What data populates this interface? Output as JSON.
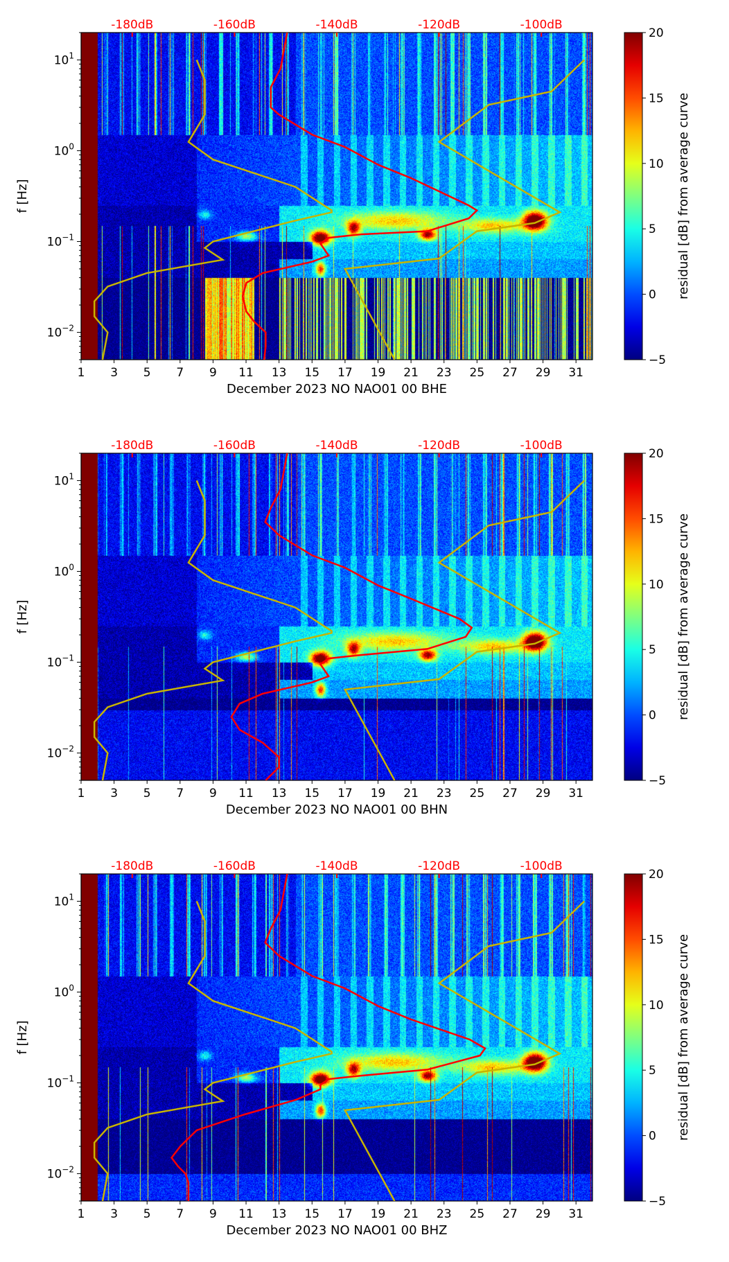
{
  "chart_data": {
    "type": "heatmap",
    "x_axis": {
      "label_field": "xlabel",
      "range_days": [
        1,
        32
      ],
      "ticks": [
        "1",
        "3",
        "5",
        "7",
        "9",
        "11",
        "13",
        "15",
        "17",
        "19",
        "21",
        "23",
        "25",
        "27",
        "29",
        "31"
      ]
    },
    "y_axis": {
      "label": "f [Hz]",
      "scale": "log",
      "range": [
        0.005,
        20
      ],
      "ticks": [
        {
          "v": 0.01,
          "b": "10",
          "e": "−2"
        },
        {
          "v": 0.1,
          "b": "10",
          "e": "−1"
        },
        {
          "v": 1,
          "b": "10",
          "e": "0"
        },
        {
          "v": 10,
          "b": "10",
          "e": "1"
        }
      ]
    },
    "top_axis": {
      "range_db": [
        -190,
        -90
      ],
      "ticks": [
        {
          "v": -180,
          "t": "-180dB"
        },
        {
          "v": -160,
          "t": "-160dB"
        },
        {
          "v": -140,
          "t": "-140dB"
        },
        {
          "v": -120,
          "t": "-120dB"
        },
        {
          "v": -100,
          "t": "-100dB"
        }
      ],
      "color": "#ff0000"
    },
    "colorbar": {
      "label": "residual [dB] from average curve",
      "range": [
        -5,
        20
      ],
      "ticks": [
        "20",
        "15",
        "10",
        "5",
        "0",
        "−5"
      ],
      "colormap": "jet"
    },
    "noise_models": {
      "color": "#c8b400",
      "low": [
        [
          -185.8,
          0.005
        ],
        [
          -184.8,
          0.01
        ],
        [
          -187.4,
          0.015
        ],
        [
          -187.4,
          0.022
        ],
        [
          -184.8,
          0.032
        ],
        [
          -177.1,
          0.045
        ],
        [
          -162.3,
          0.063
        ],
        [
          -165.8,
          0.085
        ],
        [
          -164.2,
          0.1
        ],
        [
          -148.1,
          0.17
        ],
        [
          -141,
          0.21
        ],
        [
          -141,
          0.22
        ],
        [
          -148.1,
          0.4
        ],
        [
          -164.2,
          0.8
        ],
        [
          -169,
          1.25
        ],
        [
          -165.8,
          2.5
        ],
        [
          -165.8,
          6
        ],
        [
          -167.4,
          10
        ]
      ],
      "high": [
        [
          -128.7,
          0.005
        ],
        [
          -138.4,
          0.05
        ],
        [
          -120,
          0.065
        ],
        [
          -112.6,
          0.13
        ],
        [
          -101.3,
          0.16
        ],
        [
          -96.4,
          0.21
        ],
        [
          -120,
          1.25
        ],
        [
          -110.3,
          3.2
        ],
        [
          -98,
          4.5
        ],
        [
          -91.6,
          10
        ]
      ]
    },
    "panels": [
      {
        "xlabel": "December 2023 NO NAO01 00 BHE",
        "variant": "E",
        "mean_curve": [
          [
            -154.2,
            0.005
          ],
          [
            -153.9,
            0.007
          ],
          [
            -153.9,
            0.01
          ],
          [
            -156.1,
            0.013
          ],
          [
            -157.7,
            0.017
          ],
          [
            -158.4,
            0.025
          ],
          [
            -157.7,
            0.035
          ],
          [
            -154.5,
            0.045
          ],
          [
            -144.8,
            0.06
          ],
          [
            -141.6,
            0.07
          ],
          [
            -143.2,
            0.095
          ],
          [
            -141.6,
            0.11
          ],
          [
            -135.2,
            0.12
          ],
          [
            -122.3,
            0.13
          ],
          [
            -114.2,
            0.18
          ],
          [
            -112.6,
            0.22
          ],
          [
            -114.2,
            0.25
          ],
          [
            -125.5,
            0.5
          ],
          [
            -131.9,
            0.7
          ],
          [
            -138.4,
            1.1
          ],
          [
            -144.8,
            1.5
          ],
          [
            -151.3,
            2.5
          ],
          [
            -152.9,
            3
          ],
          [
            -152.9,
            5
          ],
          [
            -151,
            8
          ],
          [
            -149.7,
            20
          ]
        ]
      },
      {
        "xlabel": "December 2023 NO NAO01 00 BHN",
        "variant": "N",
        "mean_curve": [
          [
            -153.9,
            0.005
          ],
          [
            -151.3,
            0.007
          ],
          [
            -151.3,
            0.009
          ],
          [
            -154.5,
            0.013
          ],
          [
            -159,
            0.018
          ],
          [
            -160.6,
            0.025
          ],
          [
            -159,
            0.035
          ],
          [
            -154.5,
            0.045
          ],
          [
            -144.8,
            0.06
          ],
          [
            -141.6,
            0.07
          ],
          [
            -143.2,
            0.095
          ],
          [
            -141.6,
            0.11
          ],
          [
            -135.2,
            0.12
          ],
          [
            -122.3,
            0.14
          ],
          [
            -114.8,
            0.19
          ],
          [
            -113.6,
            0.24
          ],
          [
            -116,
            0.3
          ],
          [
            -125.5,
            0.5
          ],
          [
            -131.9,
            0.7
          ],
          [
            -138.4,
            1.1
          ],
          [
            -144.8,
            1.5
          ],
          [
            -151.3,
            2.5
          ],
          [
            -154,
            3.5
          ],
          [
            -152.9,
            5
          ],
          [
            -151,
            8
          ],
          [
            -149.7,
            20
          ]
        ]
      },
      {
        "xlabel": "December 2023 NO NAO01 00 BHZ",
        "variant": "Z",
        "mean_curve": [
          [
            -169,
            0.005
          ],
          [
            -169,
            0.008
          ],
          [
            -169.6,
            0.01
          ],
          [
            -171,
            0.012
          ],
          [
            -172.3,
            0.015
          ],
          [
            -170.6,
            0.02
          ],
          [
            -167.4,
            0.03
          ],
          [
            -158,
            0.045
          ],
          [
            -148,
            0.065
          ],
          [
            -143.2,
            0.085
          ],
          [
            -143.2,
            0.095
          ],
          [
            -141.6,
            0.11
          ],
          [
            -135.2,
            0.12
          ],
          [
            -122.3,
            0.14
          ],
          [
            -112,
            0.2
          ],
          [
            -111,
            0.24
          ],
          [
            -114,
            0.3
          ],
          [
            -125.5,
            0.5
          ],
          [
            -131.9,
            0.7
          ],
          [
            -138.4,
            1.1
          ],
          [
            -144.8,
            1.5
          ],
          [
            -151.3,
            2.5
          ],
          [
            -154,
            3.5
          ],
          [
            -152.9,
            5
          ],
          [
            -151,
            8
          ],
          [
            -149.7,
            20
          ]
        ]
      }
    ]
  }
}
